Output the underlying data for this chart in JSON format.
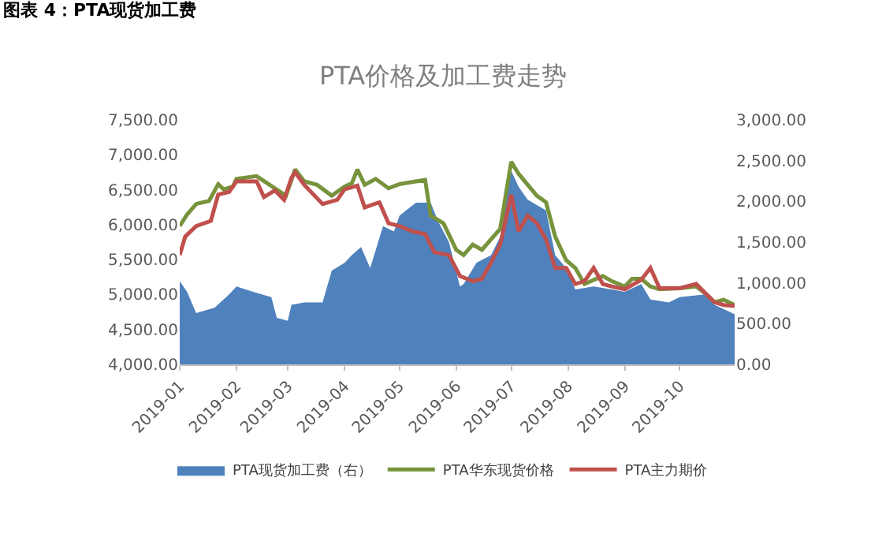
{
  "chart_data": {
    "type": "line",
    "title": "PTA价格及加工费走势",
    "subtitle": "图表 4：PTA现货加工费",
    "xlim": [
      "2019-01-01",
      "2019-10-31"
    ],
    "xticks": [
      "2019-01",
      "2019-02",
      "2019-03",
      "2019-04",
      "2019-05",
      "2019-06",
      "2019-07",
      "2019-08",
      "2019-09",
      "2019-10"
    ],
    "ylim": [
      4000,
      7500
    ],
    "yticks": [
      {
        "value": 4000,
        "label": "4,000.00"
      },
      {
        "value": 4500,
        "label": "4,500.00"
      },
      {
        "value": 5000,
        "label": "5,000.00"
      },
      {
        "value": 5500,
        "label": "5,500.00"
      },
      {
        "value": 6000,
        "label": "6,000.00"
      },
      {
        "value": 6500,
        "label": "6,500.00"
      },
      {
        "value": 7000,
        "label": "7,000.00"
      },
      {
        "value": 7500,
        "label": "7,500.00"
      }
    ],
    "y2lim": [
      0,
      3000
    ],
    "y2ticks": [
      {
        "value": 0,
        "label": "0.00"
      },
      {
        "value": 500,
        "label": "500.00"
      },
      {
        "value": 1000,
        "label": "1,000.00"
      },
      {
        "value": 1500,
        "label": "1,500.00"
      },
      {
        "value": 2000,
        "label": "2,000.00"
      },
      {
        "value": 2500,
        "label": "2,500.00"
      },
      {
        "value": 3000,
        "label": "3,000.00"
      }
    ],
    "legend": "bottom",
    "marker": "none",
    "line_style": "solid",
    "series": [
      {
        "name": "PTA现货加工费（右）",
        "type": "area",
        "axis": "y2",
        "color": "#4f81bd",
        "x": [
          "2019-01-01",
          "2019-01-05",
          "2019-01-10",
          "2019-01-20",
          "2019-01-28",
          "2019-02-01",
          "2019-02-10",
          "2019-02-20",
          "2019-02-23",
          "2019-03-01",
          "2019-03-03",
          "2019-03-10",
          "2019-03-20",
          "2019-03-25",
          "2019-04-01",
          "2019-04-05",
          "2019-04-10",
          "2019-04-15",
          "2019-04-22",
          "2019-04-28",
          "2019-05-01",
          "2019-05-10",
          "2019-05-18",
          "2019-05-22",
          "2019-05-28",
          "2019-06-03",
          "2019-06-05",
          "2019-06-12",
          "2019-06-20",
          "2019-06-25",
          "2019-07-01",
          "2019-07-05",
          "2019-07-10",
          "2019-07-15",
          "2019-07-20",
          "2019-07-25",
          "2019-07-31",
          "2019-08-05",
          "2019-08-15",
          "2019-08-25",
          "2019-09-01",
          "2019-09-10",
          "2019-09-15",
          "2019-09-25",
          "2019-10-01",
          "2019-10-15",
          "2019-10-20",
          "2019-10-31"
        ],
        "values": [
          1020,
          890,
          630,
          695,
          860,
          955,
          890,
          825,
          570,
          535,
          730,
          760,
          760,
          1150,
          1245,
          1340,
          1440,
          1180,
          1695,
          1630,
          1825,
          1985,
          1985,
          1760,
          1500,
          955,
          985,
          1245,
          1340,
          1565,
          2375,
          2180,
          2020,
          1955,
          1890,
          1340,
          1180,
          920,
          955,
          920,
          890,
          985,
          795,
          760,
          825,
          860,
          730,
          615
        ]
      },
      {
        "name": "PTA华东现货价格",
        "color": "#77933c",
        "x": [
          "2019-01-01",
          "2019-01-05",
          "2019-01-10",
          "2019-01-17",
          "2019-01-22",
          "2019-01-25",
          "2019-01-30",
          "2019-02-01",
          "2019-02-12",
          "2019-02-22",
          "2019-02-28",
          "2019-03-05",
          "2019-03-10",
          "2019-03-17",
          "2019-03-25",
          "2019-04-01",
          "2019-04-05",
          "2019-04-08",
          "2019-04-12",
          "2019-04-18",
          "2019-04-25",
          "2019-05-01",
          "2019-05-10",
          "2019-05-15",
          "2019-05-18",
          "2019-05-25",
          "2019-06-01",
          "2019-06-05",
          "2019-06-10",
          "2019-06-15",
          "2019-06-25",
          "2019-07-01",
          "2019-07-05",
          "2019-07-10",
          "2019-07-15",
          "2019-07-20",
          "2019-07-25",
          "2019-07-31",
          "2019-08-05",
          "2019-08-10",
          "2019-08-20",
          "2019-08-25",
          "2019-09-01",
          "2019-09-05",
          "2019-09-10",
          "2019-09-15",
          "2019-09-20",
          "2019-10-01",
          "2019-10-10",
          "2019-10-15",
          "2019-10-20",
          "2019-10-25",
          "2019-10-31"
        ],
        "values": [
          5980,
          6145,
          6296,
          6340,
          6580,
          6505,
          6545,
          6655,
          6695,
          6520,
          6415,
          6790,
          6620,
          6570,
          6415,
          6545,
          6595,
          6790,
          6570,
          6655,
          6520,
          6580,
          6620,
          6640,
          6130,
          6020,
          5640,
          5565,
          5715,
          5640,
          5940,
          6900,
          6730,
          6570,
          6415,
          6320,
          5830,
          5490,
          5380,
          5150,
          5265,
          5190,
          5115,
          5225,
          5225,
          5115,
          5075,
          5090,
          5115,
          5015,
          4890,
          4925,
          4850
        ]
      },
      {
        "name": "PTA主力期价",
        "color": "#c0504d",
        "x": [
          "2019-01-01",
          "2019-01-04",
          "2019-01-10",
          "2019-01-18",
          "2019-01-22",
          "2019-01-28",
          "2019-02-01",
          "2019-02-12",
          "2019-02-16",
          "2019-02-22",
          "2019-02-27",
          "2019-03-03",
          "2019-03-05",
          "2019-03-10",
          "2019-03-20",
          "2019-03-28",
          "2019-04-01",
          "2019-04-08",
          "2019-04-12",
          "2019-04-20",
          "2019-04-25",
          "2019-05-01",
          "2019-05-08",
          "2019-05-15",
          "2019-05-20",
          "2019-05-28",
          "2019-06-03",
          "2019-06-10",
          "2019-06-15",
          "2019-06-20",
          "2019-06-25",
          "2019-07-01",
          "2019-07-05",
          "2019-07-10",
          "2019-07-15",
          "2019-07-20",
          "2019-07-25",
          "2019-07-31",
          "2019-08-05",
          "2019-08-10",
          "2019-08-15",
          "2019-08-20",
          "2019-08-25",
          "2019-09-01",
          "2019-09-10",
          "2019-09-15",
          "2019-09-20",
          "2019-10-01",
          "2019-10-10",
          "2019-10-20",
          "2019-10-25",
          "2019-10-31"
        ],
        "values": [
          5565,
          5830,
          5980,
          6055,
          6430,
          6470,
          6620,
          6620,
          6395,
          6490,
          6355,
          6670,
          6750,
          6570,
          6295,
          6355,
          6505,
          6560,
          6245,
          6320,
          6020,
          5980,
          5905,
          5865,
          5605,
          5565,
          5265,
          5190,
          5225,
          5455,
          5715,
          6430,
          5905,
          6130,
          6020,
          5790,
          5380,
          5380,
          5150,
          5190,
          5380,
          5150,
          5115,
          5075,
          5210,
          5380,
          5090,
          5090,
          5150,
          4890,
          4850,
          4835
        ]
      }
    ]
  }
}
